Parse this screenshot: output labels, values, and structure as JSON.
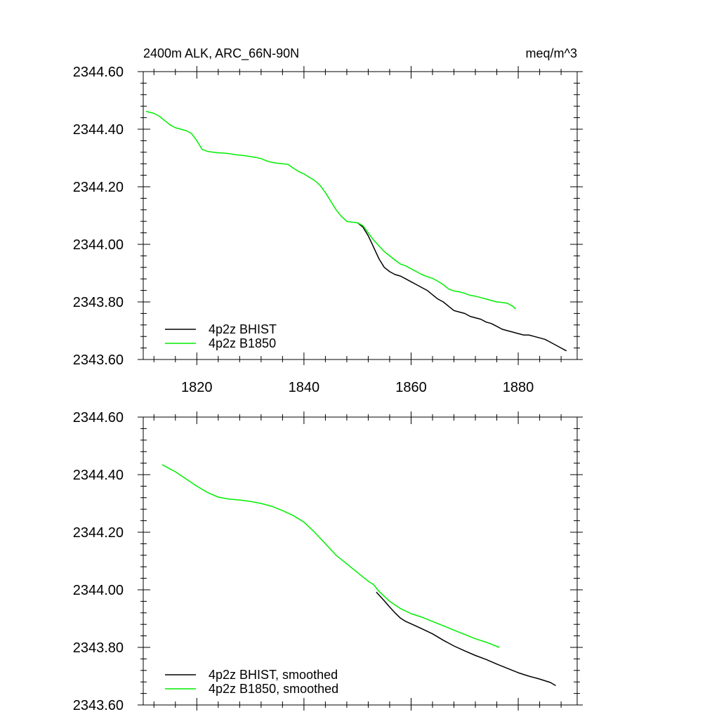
{
  "title_left": "2400m ALK, ARC_66N-90N",
  "title_right": "meq/m^3",
  "colors": {
    "bhist": "#000000",
    "b1850": "#00ee00"
  },
  "chart_data": [
    {
      "type": "line",
      "title": "2400m ALK, ARC_66N-90N",
      "units": "meq/m^3",
      "xlim": [
        1810,
        1891
      ],
      "ylim": [
        2343.6,
        2344.6
      ],
      "yticks": [
        2343.6,
        2343.8,
        2344.0,
        2344.2,
        2344.4,
        2344.6
      ],
      "ytick_labels": [
        "2343.60",
        "2343.80",
        "2344.00",
        "2344.20",
        "2344.40",
        "2344.60"
      ],
      "xticks": [
        1820,
        1840,
        1860,
        1880
      ],
      "xtick_labels": [
        "1820",
        "1840",
        "1860",
        "1880"
      ],
      "legend_position": "bottom-left",
      "series": [
        {
          "name": "4p2z BHIST",
          "color": "#000000",
          "x": [
            1850,
            1851,
            1852,
            1853,
            1854,
            1855,
            1856,
            1857,
            1858,
            1859,
            1860,
            1861,
            1862,
            1863,
            1864,
            1865,
            1866,
            1867,
            1868,
            1869,
            1870,
            1871,
            1872,
            1873,
            1874,
            1875,
            1876,
            1877,
            1878,
            1879,
            1880,
            1881,
            1882,
            1883,
            1884,
            1885,
            1886,
            1887,
            1888,
            1889
          ],
          "y": [
            2344.075,
            2344.06,
            2344.03,
            2343.99,
            2343.95,
            2343.92,
            2343.905,
            2343.895,
            2343.89,
            2343.88,
            2343.87,
            2343.86,
            2343.85,
            2343.84,
            2343.825,
            2343.81,
            2343.8,
            2343.785,
            2343.77,
            2343.765,
            2343.76,
            2343.75,
            2343.745,
            2343.74,
            2343.73,
            2343.725,
            2343.715,
            2343.705,
            2343.7,
            2343.695,
            2343.69,
            2343.685,
            2343.685,
            2343.68,
            2343.675,
            2343.67,
            2343.66,
            2343.65,
            2343.64,
            2343.63
          ]
        },
        {
          "name": "4p2z B1850",
          "color": "#00ee00",
          "x": [
            1810.5,
            1812,
            1813,
            1814,
            1815,
            1816,
            1817,
            1818,
            1819,
            1820,
            1821,
            1822,
            1823,
            1824,
            1825,
            1826,
            1827,
            1828,
            1829,
            1830,
            1831,
            1832,
            1833,
            1834,
            1835,
            1836,
            1837,
            1838,
            1839,
            1840,
            1841,
            1842,
            1843,
            1844,
            1845,
            1846,
            1847,
            1848,
            1849,
            1850,
            1851,
            1852,
            1853,
            1854,
            1855,
            1856,
            1857,
            1858,
            1859,
            1860,
            1861,
            1862,
            1863,
            1864,
            1865,
            1866,
            1867,
            1868,
            1869,
            1870,
            1871,
            1872,
            1873,
            1874,
            1875,
            1876,
            1877,
            1878,
            1879,
            1879.5
          ],
          "y": [
            2344.462,
            2344.455,
            2344.445,
            2344.43,
            2344.415,
            2344.405,
            2344.4,
            2344.395,
            2344.385,
            2344.36,
            2344.33,
            2344.323,
            2344.32,
            2344.318,
            2344.317,
            2344.315,
            2344.312,
            2344.31,
            2344.308,
            2344.305,
            2344.302,
            2344.298,
            2344.29,
            2344.285,
            2344.282,
            2344.28,
            2344.278,
            2344.265,
            2344.253,
            2344.245,
            2344.233,
            2344.222,
            2344.205,
            2344.18,
            2344.15,
            2344.12,
            2344.097,
            2344.08,
            2344.077,
            2344.075,
            2344.065,
            2344.04,
            2344.015,
            2343.995,
            2343.975,
            2343.96,
            2343.945,
            2343.932,
            2343.925,
            2343.915,
            2343.905,
            2343.895,
            2343.888,
            2343.882,
            2343.872,
            2343.86,
            2343.845,
            2343.838,
            2343.835,
            2343.83,
            2343.823,
            2343.82,
            2343.815,
            2343.81,
            2343.805,
            2343.8,
            2343.798,
            2343.795,
            2343.785,
            2343.775
          ]
        }
      ]
    },
    {
      "type": "line",
      "xlim": [
        1810,
        1891
      ],
      "ylim": [
        2343.6,
        2344.6
      ],
      "yticks": [
        2343.6,
        2343.8,
        2344.0,
        2344.2,
        2344.4,
        2344.6
      ],
      "ytick_labels": [
        "2343.60",
        "2343.80",
        "2344.00",
        "2344.20",
        "2344.40",
        "2344.60"
      ],
      "xticks": [
        1820,
        1840,
        1860,
        1880
      ],
      "legend_position": "bottom-left",
      "series": [
        {
          "name": "4p2z BHIST, smoothed",
          "color": "#000000",
          "x": [
            1853.5,
            1855,
            1856,
            1857,
            1858,
            1859,
            1860,
            1862,
            1864,
            1866,
            1868,
            1870,
            1872,
            1874,
            1876,
            1878,
            1880,
            1882,
            1884,
            1886,
            1887
          ],
          "y": [
            2343.992,
            2343.962,
            2343.94,
            2343.92,
            2343.902,
            2343.89,
            2343.882,
            2343.865,
            2343.847,
            2343.825,
            2343.805,
            2343.788,
            2343.772,
            2343.758,
            2343.742,
            2343.727,
            2343.712,
            2343.7,
            2343.69,
            2343.678,
            2343.667
          ]
        },
        {
          "name": "4p2z B1850, smoothed",
          "color": "#00ee00",
          "x": [
            1813.5,
            1815,
            1816,
            1818,
            1820,
            1822,
            1824,
            1826,
            1828,
            1830,
            1832,
            1834,
            1836,
            1838,
            1840,
            1842,
            1844,
            1846,
            1848,
            1850,
            1852,
            1853,
            1854,
            1856,
            1858,
            1860,
            1862,
            1864,
            1866,
            1868,
            1870,
            1872,
            1874,
            1876.5
          ],
          "y": [
            2344.435,
            2344.42,
            2344.41,
            2344.385,
            2344.36,
            2344.338,
            2344.322,
            2344.315,
            2344.312,
            2344.307,
            2344.3,
            2344.29,
            2344.275,
            2344.258,
            2344.235,
            2344.2,
            2344.16,
            2344.12,
            2344.09,
            2344.06,
            2344.03,
            2344.018,
            2343.995,
            2343.96,
            2343.935,
            2343.917,
            2343.905,
            2343.89,
            2343.875,
            2343.86,
            2343.845,
            2343.83,
            2343.818,
            2343.8
          ]
        }
      ]
    }
  ]
}
